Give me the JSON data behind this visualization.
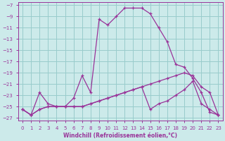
{
  "xlabel": "Windchill (Refroidissement éolien,°C)",
  "bg_color": "#cceaea",
  "grid_color": "#99cccc",
  "line_color": "#993399",
  "xlim": [
    -0.5,
    23.5
  ],
  "ylim": [
    -27.5,
    -6.5
  ],
  "yticks": [
    -27,
    -25,
    -23,
    -21,
    -19,
    -17,
    -15,
    -13,
    -11,
    -9,
    -7
  ],
  "xticks": [
    0,
    1,
    2,
    3,
    4,
    5,
    6,
    7,
    8,
    9,
    10,
    11,
    12,
    13,
    14,
    15,
    16,
    17,
    18,
    19,
    20,
    21,
    22,
    23
  ],
  "line1_x": [
    0,
    1,
    2,
    3,
    4,
    5,
    6,
    7,
    8,
    9,
    10,
    11,
    12,
    13,
    14,
    15,
    16,
    17,
    18,
    19,
    20,
    21,
    22,
    23
  ],
  "line1_y": [
    -25.5,
    -26.5,
    -22.5,
    -24.5,
    -25.0,
    -25.0,
    -23.5,
    -19.5,
    -22.5,
    -9.5,
    -10.5,
    -9.0,
    -7.5,
    -7.5,
    -7.5,
    -8.5,
    -11.0,
    -13.5,
    -17.5,
    -18.0,
    -20.0,
    -22.5,
    -26.0,
    -26.5
  ],
  "line2_x": [
    0,
    1,
    2,
    3,
    4,
    5,
    6,
    7,
    8,
    9,
    10,
    11,
    12,
    13,
    14,
    15,
    16,
    17,
    18,
    19,
    20,
    21,
    22,
    23
  ],
  "line2_y": [
    -25.5,
    -26.5,
    -25.5,
    -25.0,
    -25.0,
    -25.0,
    -25.0,
    -25.0,
    -24.5,
    -24.0,
    -23.5,
    -23.0,
    -22.5,
    -22.0,
    -21.5,
    -25.5,
    -24.5,
    -24.0,
    -23.0,
    -22.0,
    -20.5,
    -24.5,
    -25.5,
    -26.5
  ],
  "line3_x": [
    0,
    1,
    2,
    3,
    4,
    5,
    6,
    7,
    8,
    9,
    10,
    11,
    12,
    13,
    14,
    15,
    16,
    17,
    18,
    19,
    20,
    21,
    22,
    23
  ],
  "line3_y": [
    -25.5,
    -26.5,
    -25.5,
    -25.0,
    -25.0,
    -25.0,
    -25.0,
    -25.0,
    -24.5,
    -24.0,
    -23.5,
    -23.0,
    -22.5,
    -22.0,
    -21.5,
    -21.0,
    -20.5,
    -20.0,
    -19.5,
    -19.0,
    -19.5,
    -21.5,
    -22.5,
    -26.5
  ]
}
